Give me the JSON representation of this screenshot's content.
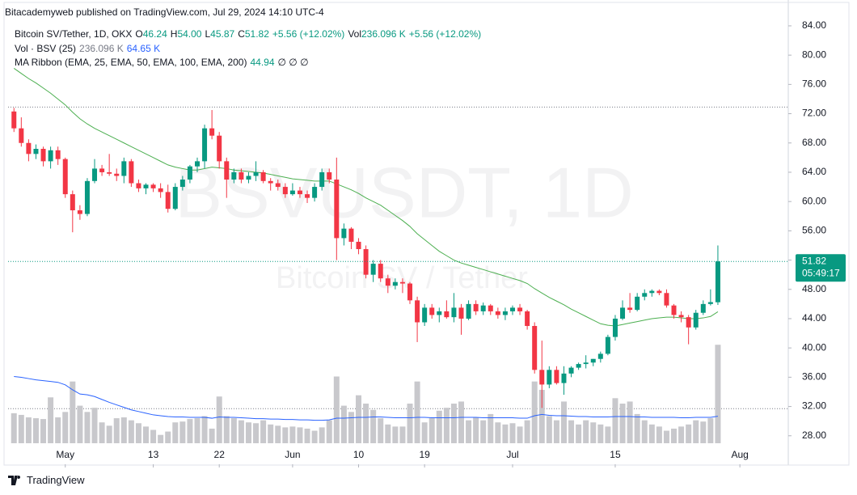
{
  "header": {
    "published": "Bitacademyweb published on TradingView.com, Jul 29, 2024 14:10 UTC-4"
  },
  "legend": {
    "symbol": "Bitcoin SV/Tether, 1D, OKX",
    "ohlc": [
      {
        "key": "O",
        "value": "46.24"
      },
      {
        "key": "H",
        "value": "54.00"
      },
      {
        "key": "L",
        "value": "45.87"
      },
      {
        "key": "C",
        "value": "51.82"
      }
    ],
    "change": "+5.56 (+12.02%)",
    "vol_key": "Vol",
    "vol_value": "236.096 K",
    "vol_change": "+5.56 (+12.02%)",
    "volume_study": {
      "name": "Vol · BSV (25)",
      "value": "236.096 K",
      "ma": "64.65 K"
    },
    "ma_ribbon": {
      "name": "MA Ribbon (EMA, 25, EMA, 50, EMA, 100, EMA, 200)",
      "value": "44.94",
      "others": "∅ ∅ ∅"
    }
  },
  "chart_data": {
    "type": "candlestick",
    "watermark": "BSVUSDT, 1D",
    "watermark_subtitle": "Bitcoin SV / Tether",
    "up_color": "#089981",
    "down_color": "#f23645",
    "open": [
      72.3,
      70.0,
      68.0,
      66.5,
      67.2,
      65.5,
      67.0,
      65.8,
      61.0,
      58.8,
      58.3,
      62.8,
      64.5,
      64.0,
      63.8,
      63.5,
      65.5,
      62.5,
      61.8,
      62.3,
      61.8,
      61.3,
      59.0,
      62.0,
      63.0,
      64.8,
      65.5,
      70.0,
      69.0,
      65.5,
      63.0,
      64.0,
      63.0,
      63.5,
      64.0,
      62.8,
      62.5,
      62.0,
      61.0,
      61.5,
      61.0,
      60.5,
      62.0,
      64.0,
      63.0,
      55.0,
      56.3,
      54.5,
      53.5,
      50.0,
      51.5,
      49.5,
      48.5,
      49.0,
      48.8,
      46.5,
      43.5,
      45.5,
      44.5,
      45.0,
      44.2,
      45.5,
      44.0,
      46.0,
      45.0,
      45.8,
      45.0,
      44.5,
      45.0,
      45.5,
      45.0,
      43.0,
      37.0,
      35.0,
      37.0,
      35.2,
      36.5,
      37.3,
      37.8,
      38.0,
      38.5,
      39.2,
      41.5,
      44.0,
      45.5,
      45.2,
      47.0,
      47.5,
      47.8,
      47.5,
      45.8,
      44.5,
      44.2,
      42.8,
      44.8,
      46.0,
      46.24
    ],
    "high": [
      72.8,
      71.5,
      68.5,
      67.8,
      67.5,
      67.5,
      67.5,
      66.0,
      61.5,
      59.5,
      63.2,
      65.8,
      65.0,
      66.5,
      64.5,
      66.0,
      65.8,
      63.0,
      62.5,
      62.5,
      62.5,
      62.3,
      62.5,
      63.5,
      65.0,
      66.0,
      70.5,
      72.5,
      69.5,
      66.0,
      64.5,
      64.5,
      64.0,
      65.5,
      64.3,
      63.2,
      63.0,
      62.5,
      62.5,
      62.0,
      61.5,
      62.5,
      64.5,
      64.5,
      66.0,
      57.0,
      56.5,
      55.0,
      54.0,
      52.0,
      52.0,
      50.0,
      49.5,
      49.5,
      49.0,
      47.0,
      46.0,
      46.0,
      45.5,
      46.5,
      47.5,
      46.0,
      46.5,
      46.5,
      46.2,
      46.0,
      45.5,
      45.5,
      45.8,
      46.0,
      45.2,
      43.5,
      41.0,
      37.5,
      37.5,
      37.5,
      37.5,
      38.0,
      39.0,
      38.5,
      39.5,
      41.8,
      44.5,
      46.5,
      47.5,
      47.5,
      48.0,
      48.0,
      48.0,
      48.0,
      46.0,
      45.0,
      44.5,
      45.2,
      46.5,
      48.0,
      54.0
    ],
    "low": [
      69.5,
      67.5,
      65.5,
      65.8,
      64.8,
      64.5,
      65.0,
      60.5,
      55.8,
      57.5,
      58.0,
      62.5,
      63.5,
      63.5,
      62.8,
      62.5,
      62.0,
      61.3,
      61.0,
      61.3,
      60.5,
      58.5,
      58.8,
      61.5,
      62.5,
      64.0,
      64.5,
      68.5,
      64.5,
      60.5,
      62.5,
      62.5,
      62.5,
      62.8,
      62.5,
      61.5,
      61.5,
      60.5,
      60.8,
      60.5,
      59.8,
      60.0,
      61.5,
      62.5,
      52.0,
      54.0,
      53.5,
      52.8,
      49.5,
      49.0,
      49.0,
      47.5,
      48.0,
      47.5,
      46.0,
      40.8,
      43.0,
      44.0,
      43.5,
      44.0,
      43.5,
      41.8,
      43.8,
      44.5,
      44.5,
      44.5,
      44.0,
      43.8,
      44.5,
      44.5,
      42.5,
      36.5,
      31.8,
      34.5,
      35.0,
      33.6,
      36.0,
      37.0,
      37.2,
      37.5,
      38.0,
      39.0,
      41.0,
      43.8,
      44.8,
      45.0,
      46.5,
      47.0,
      47.2,
      45.5,
      44.0,
      43.5,
      40.5,
      42.5,
      44.5,
      45.8,
      45.87
    ],
    "close": [
      70.0,
      68.0,
      66.5,
      67.2,
      65.5,
      67.0,
      65.8,
      61.0,
      58.8,
      58.3,
      62.8,
      64.5,
      64.0,
      63.8,
      63.5,
      65.5,
      62.5,
      61.8,
      62.3,
      61.8,
      61.3,
      59.0,
      62.0,
      63.0,
      64.8,
      65.5,
      70.0,
      69.0,
      65.5,
      63.0,
      64.0,
      63.0,
      63.5,
      64.0,
      62.8,
      62.5,
      62.0,
      61.0,
      61.5,
      61.0,
      60.5,
      62.0,
      64.0,
      63.0,
      55.0,
      56.3,
      54.5,
      53.5,
      50.0,
      51.5,
      49.5,
      48.5,
      49.0,
      48.8,
      46.5,
      43.5,
      45.5,
      44.5,
      45.0,
      44.2,
      45.5,
      44.0,
      46.0,
      45.0,
      45.8,
      45.0,
      44.5,
      45.0,
      45.5,
      45.0,
      43.0,
      37.0,
      35.0,
      37.0,
      35.2,
      36.5,
      37.3,
      37.8,
      38.0,
      38.5,
      39.2,
      41.5,
      44.0,
      45.5,
      45.2,
      47.0,
      47.5,
      47.8,
      47.5,
      45.8,
      44.5,
      44.2,
      42.8,
      44.8,
      46.0,
      46.26,
      51.82
    ],
    "ema": {
      "color": "#4caf50",
      "values": [
        78.2,
        77.5,
        76.8,
        76.2,
        75.5,
        74.8,
        74.0,
        73.2,
        72.2,
        71.3,
        70.6,
        70.0,
        69.5,
        69.0,
        68.5,
        68.0,
        67.5,
        67.0,
        66.5,
        66.0,
        65.5,
        65.0,
        64.7,
        64.5,
        64.3,
        64.3,
        64.5,
        64.7,
        64.6,
        64.5,
        64.3,
        64.2,
        64.1,
        64.0,
        63.9,
        63.7,
        63.5,
        63.3,
        63.1,
        63.0,
        62.9,
        62.8,
        62.8,
        62.8,
        62.4,
        62.0,
        61.6,
        61.1,
        60.5,
        60.0,
        59.5,
        58.8,
        58.1,
        57.4,
        56.6,
        55.6,
        54.8,
        54.0,
        53.2,
        52.6,
        52.0,
        51.6,
        51.3,
        51.0,
        50.7,
        50.4,
        50.1,
        49.8,
        49.5,
        49.2,
        48.8,
        48.1,
        47.5,
        46.9,
        46.4,
        45.9,
        45.3,
        44.8,
        44.3,
        43.8,
        43.3,
        43.1,
        43.0,
        43.2,
        43.4,
        43.6,
        43.8,
        44.0,
        44.1,
        44.2,
        44.2,
        44.1,
        44.0,
        44.0,
        44.1,
        44.3,
        44.94
      ]
    },
    "volume": {
      "color": "#c8c8cc",
      "ylim": [
        0,
        1020
      ],
      "values": [
        72,
        68,
        62,
        60,
        58,
        110,
        62,
        75,
        148,
        90,
        75,
        85,
        50,
        42,
        60,
        62,
        55,
        48,
        40,
        32,
        20,
        28,
        50,
        52,
        58,
        60,
        65,
        35,
        112,
        65,
        60,
        55,
        50,
        48,
        55,
        45,
        42,
        38,
        40,
        38,
        35,
        30,
        38,
        55,
        160,
        90,
        75,
        115,
        95,
        80,
        60,
        45,
        40,
        40,
        95,
        148,
        50,
        60,
        78,
        85,
        95,
        100,
        55,
        62,
        55,
        70,
        50,
        45,
        48,
        40,
        55,
        148,
        128,
        65,
        55,
        100,
        55,
        45,
        55,
        50,
        45,
        40,
        108,
        95,
        100,
        70,
        55,
        45,
        40,
        30,
        35,
        40,
        45,
        55,
        52,
        60,
        236.096
      ],
      "ma": {
        "color": "#2962ff",
        "values": [
          160,
          158,
          155,
          152,
          150,
          148,
          146,
          140,
          128,
          118,
          116,
          112,
          105,
          98,
          92,
          86,
          80,
          76,
          72,
          68,
          66,
          64,
          63,
          63,
          62,
          62,
          62,
          60,
          63,
          62,
          62,
          61,
          60,
          59,
          59,
          58,
          58,
          57,
          57,
          56,
          56,
          55,
          55,
          56,
          60,
          60,
          61,
          62,
          62,
          63,
          63,
          62,
          61,
          61,
          61,
          62,
          62,
          61,
          61,
          61,
          61,
          62,
          62,
          62,
          61,
          61,
          61,
          61,
          61,
          60,
          60,
          66,
          69,
          67,
          66,
          66,
          65,
          64,
          64,
          63,
          63,
          63,
          64,
          64,
          64,
          63,
          63,
          62,
          62,
          62,
          62,
          61,
          61,
          62,
          62,
          62,
          64.65
        ]
      }
    },
    "xlim": [
      -0.8,
      105.6
    ],
    "xticks": [
      {
        "value": 7,
        "label": "May"
      },
      {
        "value": 19,
        "label": "13"
      },
      {
        "value": 28,
        "label": "22"
      },
      {
        "value": 38,
        "label": "Jun"
      },
      {
        "value": 47,
        "label": "10"
      },
      {
        "value": 56,
        "label": "19"
      },
      {
        "value": 68,
        "label": "Jul"
      },
      {
        "value": 82,
        "label": "15"
      },
      {
        "value": 99,
        "label": "Aug"
      }
    ],
    "ylim": [
      26.98,
      85.1
    ],
    "yticks": [
      {
        "value": 84,
        "label": "84.00"
      },
      {
        "value": 80,
        "label": "80.00"
      },
      {
        "value": 76,
        "label": "76.00"
      },
      {
        "value": 72,
        "label": "72.00"
      },
      {
        "value": 68,
        "label": "68.00"
      },
      {
        "value": 64,
        "label": "64.00"
      },
      {
        "value": 60,
        "label": "60.00"
      },
      {
        "value": 56,
        "label": "56.00"
      },
      {
        "value": 52,
        "label": "52.00"
      },
      {
        "value": 48,
        "label": "48.00"
      },
      {
        "value": 44,
        "label": "44.00"
      },
      {
        "value": 40,
        "label": "40.00"
      },
      {
        "value": 36,
        "label": "36.00"
      },
      {
        "value": 32,
        "label": "32.00"
      },
      {
        "value": 28,
        "label": "28.00"
      }
    ],
    "price_lines": [
      72.9,
      31.7
    ],
    "last_price": {
      "value": 51.82,
      "label": "51.82",
      "countdown": "05:49:17"
    }
  },
  "footer": {
    "brand": "TradingView"
  }
}
